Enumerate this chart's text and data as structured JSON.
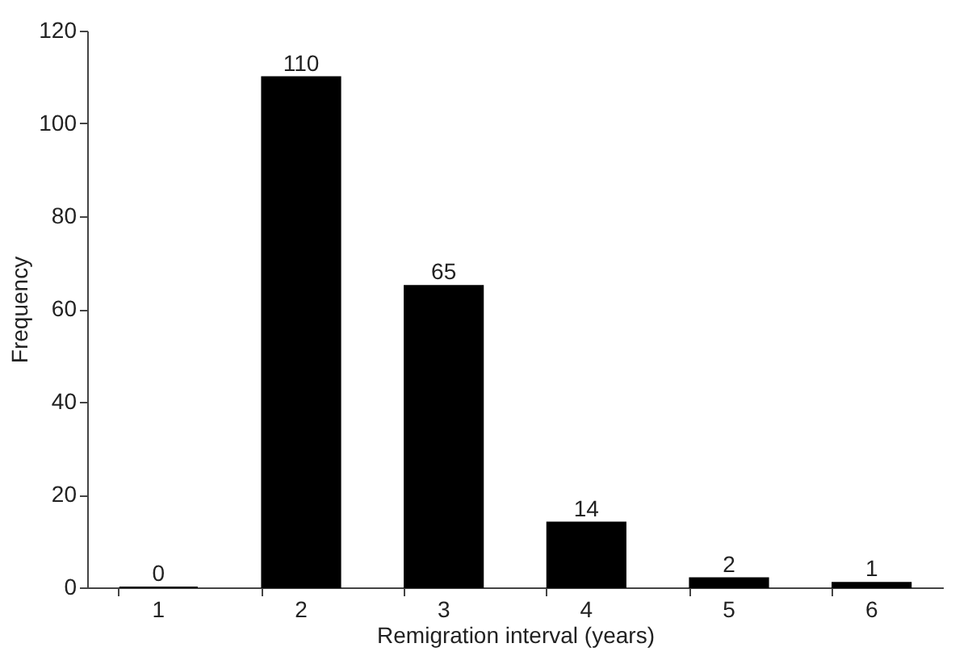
{
  "chart_data": {
    "type": "bar",
    "xlabel": "Remigration interval (years)",
    "ylabel": "Frequency",
    "categories": [
      "1",
      "2",
      "3",
      "4",
      "5",
      "6"
    ],
    "values": [
      0,
      110,
      65,
      14,
      2,
      1
    ],
    "color": "#000000",
    "ylim": [
      0,
      120
    ],
    "yticks": [
      0,
      20,
      40,
      60,
      80,
      100,
      120
    ],
    "data_labels": true,
    "grid": false
  }
}
